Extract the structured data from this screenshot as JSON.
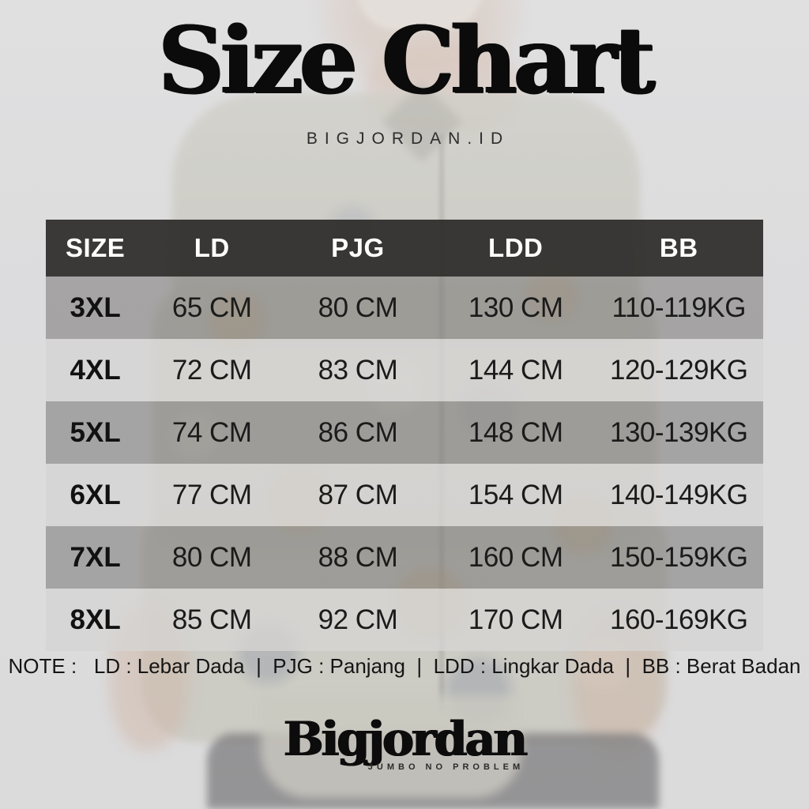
{
  "header": {
    "title": "Size Chart",
    "subtitle": "BIGJORDAN.ID"
  },
  "table": {
    "headers": [
      "SIZE",
      "LD",
      "PJG",
      "LDD",
      "BB"
    ],
    "rows": [
      [
        "3XL",
        "65 CM",
        "80 CM",
        "130 CM",
        "110-119KG"
      ],
      [
        "4XL",
        "72 CM",
        "83 CM",
        "144 CM",
        "120-129KG"
      ],
      [
        "5XL",
        "74 CM",
        "86 CM",
        "148 CM",
        "130-139KG"
      ],
      [
        "6XL",
        "77 CM",
        "87 CM",
        "154 CM",
        "140-149KG"
      ],
      [
        "7XL",
        "80 CM",
        "88 CM",
        "160 CM",
        "150-159KG"
      ],
      [
        "8XL",
        "85 CM",
        "92 CM",
        "170 CM",
        "160-169KG"
      ]
    ],
    "legend": [
      {
        "abbr": "LD",
        "meaning": "Lebar Dada"
      },
      {
        "abbr": "PJG",
        "meaning": "Panjang"
      },
      {
        "abbr": "LDD",
        "meaning": "Lingkar Dada"
      },
      {
        "abbr": "BB",
        "meaning": "Berat Badan"
      }
    ]
  },
  "note": {
    "text": "NOTE :   LD : Lebar Dada  |  PJG : Panjang  |  LDD : Lingkar Dada  |  BB : Berat Badan"
  },
  "footer": {
    "brand": "Bigjordan",
    "tagline": "JUMBO NO PROBLEM"
  },
  "colors": {
    "background": "#dcdcdd",
    "header_band": "#2c2a28",
    "row_dark": "#a7a5a4",
    "row_light": "#d7d6d4",
    "text_dark": "#1b1b1b",
    "text_light": "#ffffff"
  }
}
